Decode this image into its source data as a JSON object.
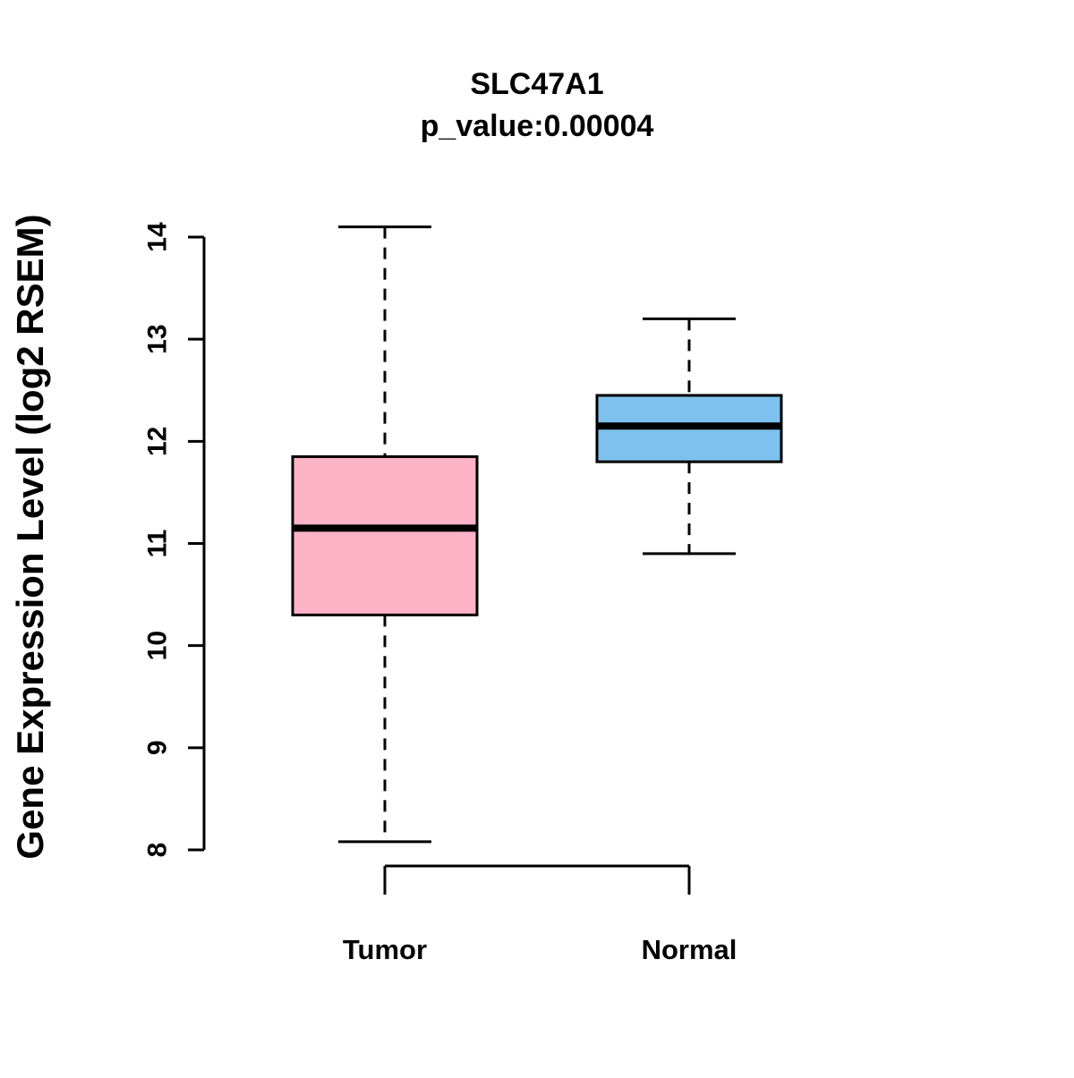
{
  "title": {
    "line1": "SLC47A1",
    "line2": "p_value:0.00004"
  },
  "ylabel": "Gene Expression Level (log2 RSEM)",
  "colors": {
    "tumor_fill": "#FFB3C6",
    "normal_fill": "#7EC0EE",
    "stroke": "#000000",
    "background": "#FFFFFF"
  },
  "chart_data": {
    "type": "boxplot",
    "title": "SLC47A1",
    "subtitle": "p_value:0.00004",
    "xlabel": "",
    "ylabel": "Gene Expression Level (log2 RSEM)",
    "ylim": [
      8,
      14
    ],
    "yticks": [
      8,
      9,
      10,
      11,
      12,
      13,
      14
    ],
    "grid": false,
    "legend": "none",
    "categories": [
      "Tumor",
      "Normal"
    ],
    "series": [
      {
        "name": "Tumor",
        "color": "#FFB3C6",
        "whisker_low": 8.08,
        "q1": 10.3,
        "median": 11.15,
        "q3": 11.85,
        "whisker_high": 14.1
      },
      {
        "name": "Normal",
        "color": "#7EC0EE",
        "whisker_low": 10.9,
        "q1": 11.8,
        "median": 12.15,
        "q3": 12.45,
        "whisker_high": 13.2
      }
    ]
  }
}
